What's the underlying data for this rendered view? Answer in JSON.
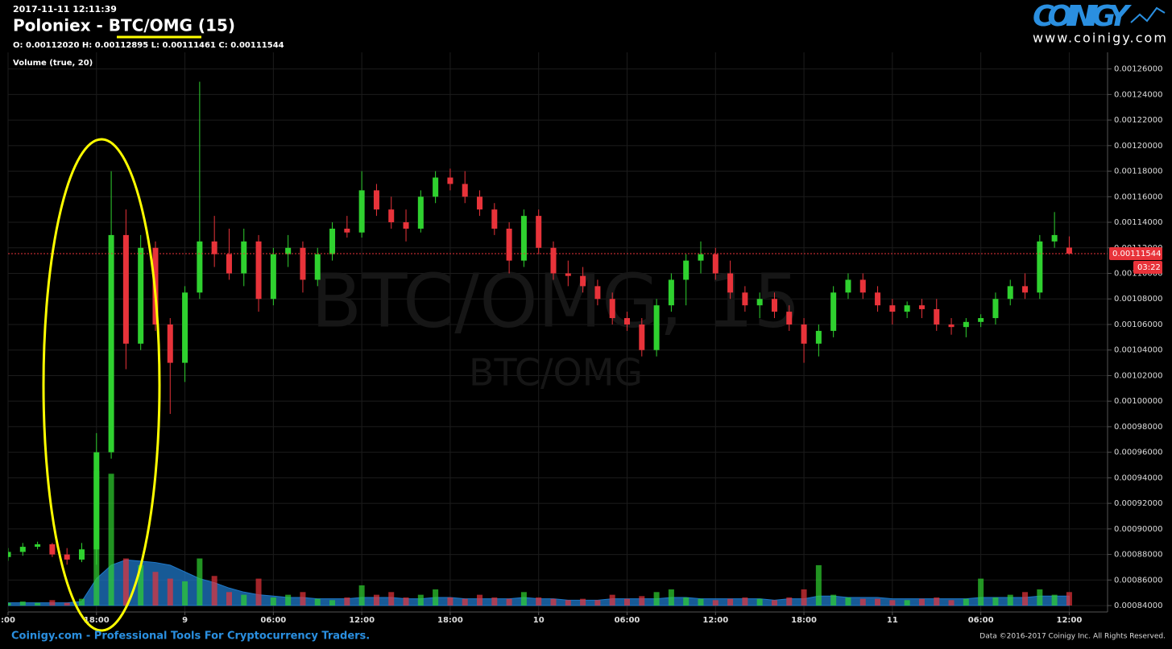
{
  "chart_data": {
    "type": "candlestick",
    "timestamp": "2017-11-11 12:11:39",
    "title": "Poloniex - BTC/OMG (15)",
    "ohlc_text": "O: 0.00112020 H: 0.00112895 L: 0.00111461 C: 0.00111544",
    "study_label": "Volume (true, 20)",
    "watermark": "BTC/OMG, 15",
    "watermark_sub": "BTC/OMG",
    "logo": "COINIGY",
    "logo_url": "www.coinigy.com",
    "footer_left": "Coinigy.com - Professional Tools For Cryptocurrency Traders.",
    "footer_right": "Data ©2016-2017 Coinigy Inc. All Rights Reserved.",
    "last_price": {
      "value": 0.00111544,
      "label": "0.00111544"
    },
    "countdown": "03:22",
    "up_color": "#2fd12f",
    "down_color": "#e8333a",
    "volume_ma_color": "#1f78c8",
    "grid": true,
    "xlim": [
      0,
      74.6
    ],
    "ylim": [
      0.000835,
      0.001273
    ],
    "y2lim": [
      0,
      100
    ],
    "xticks": [
      {
        "value": 0,
        "label": ":00"
      },
      {
        "value": 6,
        "label": "18:00"
      },
      {
        "value": 12,
        "label": "9"
      },
      {
        "value": 18,
        "label": "06:00"
      },
      {
        "value": 24,
        "label": "12:00"
      },
      {
        "value": 30,
        "label": "18:00"
      },
      {
        "value": 36,
        "label": "10"
      },
      {
        "value": 42,
        "label": "06:00"
      },
      {
        "value": 48,
        "label": "12:00"
      },
      {
        "value": 54,
        "label": "18:00"
      },
      {
        "value": 60,
        "label": "11"
      },
      {
        "value": 66,
        "label": "06:00"
      },
      {
        "value": 72,
        "label": "12:00"
      }
    ],
    "yticks": [
      {
        "value": 0.00084,
        "label": "0.00084000"
      },
      {
        "value": 0.00086,
        "label": "0.00086000"
      },
      {
        "value": 0.00088,
        "label": "0.00088000"
      },
      {
        "value": 0.0009,
        "label": "0.00090000"
      },
      {
        "value": 0.00092,
        "label": "0.00092000"
      },
      {
        "value": 0.00094,
        "label": "0.00094000"
      },
      {
        "value": 0.00096,
        "label": "0.00096000"
      },
      {
        "value": 0.00098,
        "label": "0.00098000"
      },
      {
        "value": 0.001,
        "label": "0.00100000"
      },
      {
        "value": 0.00102,
        "label": "0.00102000"
      },
      {
        "value": 0.00104,
        "label": "0.00104000"
      },
      {
        "value": 0.00106,
        "label": "0.00106000"
      },
      {
        "value": 0.00108,
        "label": "0.00108000"
      },
      {
        "value": 0.0011,
        "label": "0.00110000"
      },
      {
        "value": 0.00112,
        "label": "0.00112000"
      },
      {
        "value": 0.00114,
        "label": "0.00114000"
      },
      {
        "value": 0.00116,
        "label": "0.00116000"
      },
      {
        "value": 0.00118,
        "label": "0.00118000"
      },
      {
        "value": 0.0012,
        "label": "0.00120000"
      },
      {
        "value": 0.00122,
        "label": "0.00122000"
      },
      {
        "value": 0.00124,
        "label": "0.00124000"
      },
      {
        "value": 0.00126,
        "label": "0.00126000"
      }
    ],
    "open": [
      0.000878,
      0.000882,
      0.000886,
      0.000888,
      0.00088,
      0.000876,
      0.000884,
      0.00096,
      0.00113,
      0.001045,
      0.00112,
      0.00106,
      0.00103,
      0.001085,
      0.001125,
      0.001115,
      0.0011,
      0.001125,
      0.00108,
      0.001115,
      0.00112,
      0.001095,
      0.001115,
      0.001135,
      0.001132,
      0.001165,
      0.00115,
      0.00114,
      0.001135,
      0.00116,
      0.001175,
      0.00117,
      0.00116,
      0.00115,
      0.001135,
      0.00111,
      0.001145,
      0.00112,
      0.0011,
      0.001098,
      0.00109,
      0.00108,
      0.001065,
      0.00106,
      0.00104,
      0.001075,
      0.001095,
      0.00111,
      0.001115,
      0.0011,
      0.001085,
      0.001075,
      0.00108,
      0.00107,
      0.00106,
      0.001045,
      0.001055,
      0.001085,
      0.001095,
      0.001085,
      0.001075,
      0.00107,
      0.001075,
      0.001072,
      0.00106,
      0.001058,
      0.001062,
      0.001065,
      0.00108,
      0.00109,
      0.001085,
      0.001125,
      0.0011202
    ],
    "high": [
      0.000885,
      0.000889,
      0.00089,
      0.000889,
      0.000885,
      0.000889,
      0.000975,
      0.00118,
      0.00115,
      0.00113,
      0.001125,
      0.001065,
      0.00109,
      0.00125,
      0.001145,
      0.001135,
      0.001135,
      0.00113,
      0.00112,
      0.00113,
      0.001125,
      0.00112,
      0.00114,
      0.001145,
      0.00118,
      0.00117,
      0.00116,
      0.00115,
      0.001165,
      0.00118,
      0.001182,
      0.00118,
      0.001165,
      0.001155,
      0.00114,
      0.00115,
      0.00115,
      0.001125,
      0.00111,
      0.001105,
      0.001095,
      0.001085,
      0.00107,
      0.001065,
      0.00108,
      0.0011,
      0.001115,
      0.001125,
      0.00112,
      0.00111,
      0.00109,
      0.001085,
      0.001085,
      0.001075,
      0.001065,
      0.00106,
      0.00109,
      0.0011,
      0.0011,
      0.00109,
      0.00108,
      0.001078,
      0.00108,
      0.00108,
      0.001065,
      0.001065,
      0.001068,
      0.001085,
      0.001095,
      0.0011,
      0.00113,
      0.001148,
      0.00112895
    ],
    "low": [
      0.000875,
      0.000879,
      0.000884,
      0.000878,
      0.000872,
      0.000874,
      0.000872,
      0.000955,
      0.001025,
      0.00104,
      0.001055,
      0.00099,
      0.001015,
      0.00108,
      0.001105,
      0.001095,
      0.00109,
      0.00107,
      0.001075,
      0.001105,
      0.001085,
      0.00109,
      0.00111,
      0.001128,
      0.001128,
      0.001145,
      0.001135,
      0.001125,
      0.001132,
      0.001155,
      0.001165,
      0.001155,
      0.001145,
      0.00113,
      0.0011,
      0.001105,
      0.001115,
      0.001095,
      0.00109,
      0.001085,
      0.001075,
      0.00106,
      0.001055,
      0.001035,
      0.001035,
      0.00107,
      0.001075,
      0.0011,
      0.001095,
      0.00108,
      0.00107,
      0.001065,
      0.001065,
      0.001055,
      0.00103,
      0.001035,
      0.00105,
      0.00108,
      0.00108,
      0.00107,
      0.00106,
      0.001065,
      0.001065,
      0.001055,
      0.001052,
      0.00105,
      0.001058,
      0.00106,
      0.001075,
      0.00108,
      0.00108,
      0.00112,
      0.00111461
    ],
    "close": [
      0.000882,
      0.000886,
      0.000888,
      0.00088,
      0.000876,
      0.000884,
      0.00096,
      0.00113,
      0.001045,
      0.00112,
      0.00106,
      0.00103,
      0.001085,
      0.001125,
      0.001115,
      0.0011,
      0.001125,
      0.00108,
      0.001115,
      0.00112,
      0.001095,
      0.001115,
      0.001135,
      0.001132,
      0.001165,
      0.00115,
      0.00114,
      0.001135,
      0.00116,
      0.001175,
      0.00117,
      0.00116,
      0.00115,
      0.001135,
      0.00111,
      0.001145,
      0.00112,
      0.0011,
      0.001098,
      0.00109,
      0.00108,
      0.001065,
      0.00106,
      0.00104,
      0.001075,
      0.001095,
      0.00111,
      0.001115,
      0.0011,
      0.001085,
      0.001075,
      0.00108,
      0.00107,
      0.00106,
      0.001045,
      0.001055,
      0.001085,
      0.001095,
      0.001085,
      0.001075,
      0.00107,
      0.001075,
      0.001072,
      0.00106,
      0.001058,
      0.001062,
      0.001065,
      0.00108,
      0.00109,
      0.001085,
      0.001125,
      0.00113,
      0.00111544
    ],
    "volume": [
      2,
      3,
      2,
      4,
      2,
      5,
      100,
      98,
      35,
      30,
      25,
      20,
      18,
      35,
      22,
      10,
      8,
      20,
      6,
      8,
      10,
      5,
      4,
      6,
      15,
      8,
      10,
      6,
      8,
      12,
      6,
      5,
      8,
      6,
      5,
      10,
      6,
      5,
      4,
      5,
      4,
      8,
      5,
      7,
      10,
      12,
      6,
      5,
      4,
      5,
      6,
      5,
      4,
      6,
      12,
      30,
      8,
      6,
      5,
      5,
      4,
      4,
      5,
      6,
      4,
      5,
      20,
      6,
      8,
      10,
      12,
      8,
      10
    ],
    "volume_ma": [
      2,
      2,
      2,
      2,
      2,
      3,
      20,
      30,
      34,
      33,
      32,
      30,
      25,
      20,
      17,
      13,
      10,
      8,
      7,
      6,
      6,
      5,
      5,
      5,
      6,
      6,
      6,
      5,
      5,
      6,
      6,
      5,
      5,
      5,
      5,
      6,
      5,
      5,
      4,
      4,
      4,
      5,
      5,
      5,
      5,
      6,
      6,
      5,
      5,
      5,
      5,
      5,
      4,
      5,
      5,
      7,
      7,
      6,
      6,
      6,
      5,
      5,
      5,
      5,
      5,
      5,
      6,
      6,
      6,
      6,
      7,
      7,
      7
    ]
  }
}
